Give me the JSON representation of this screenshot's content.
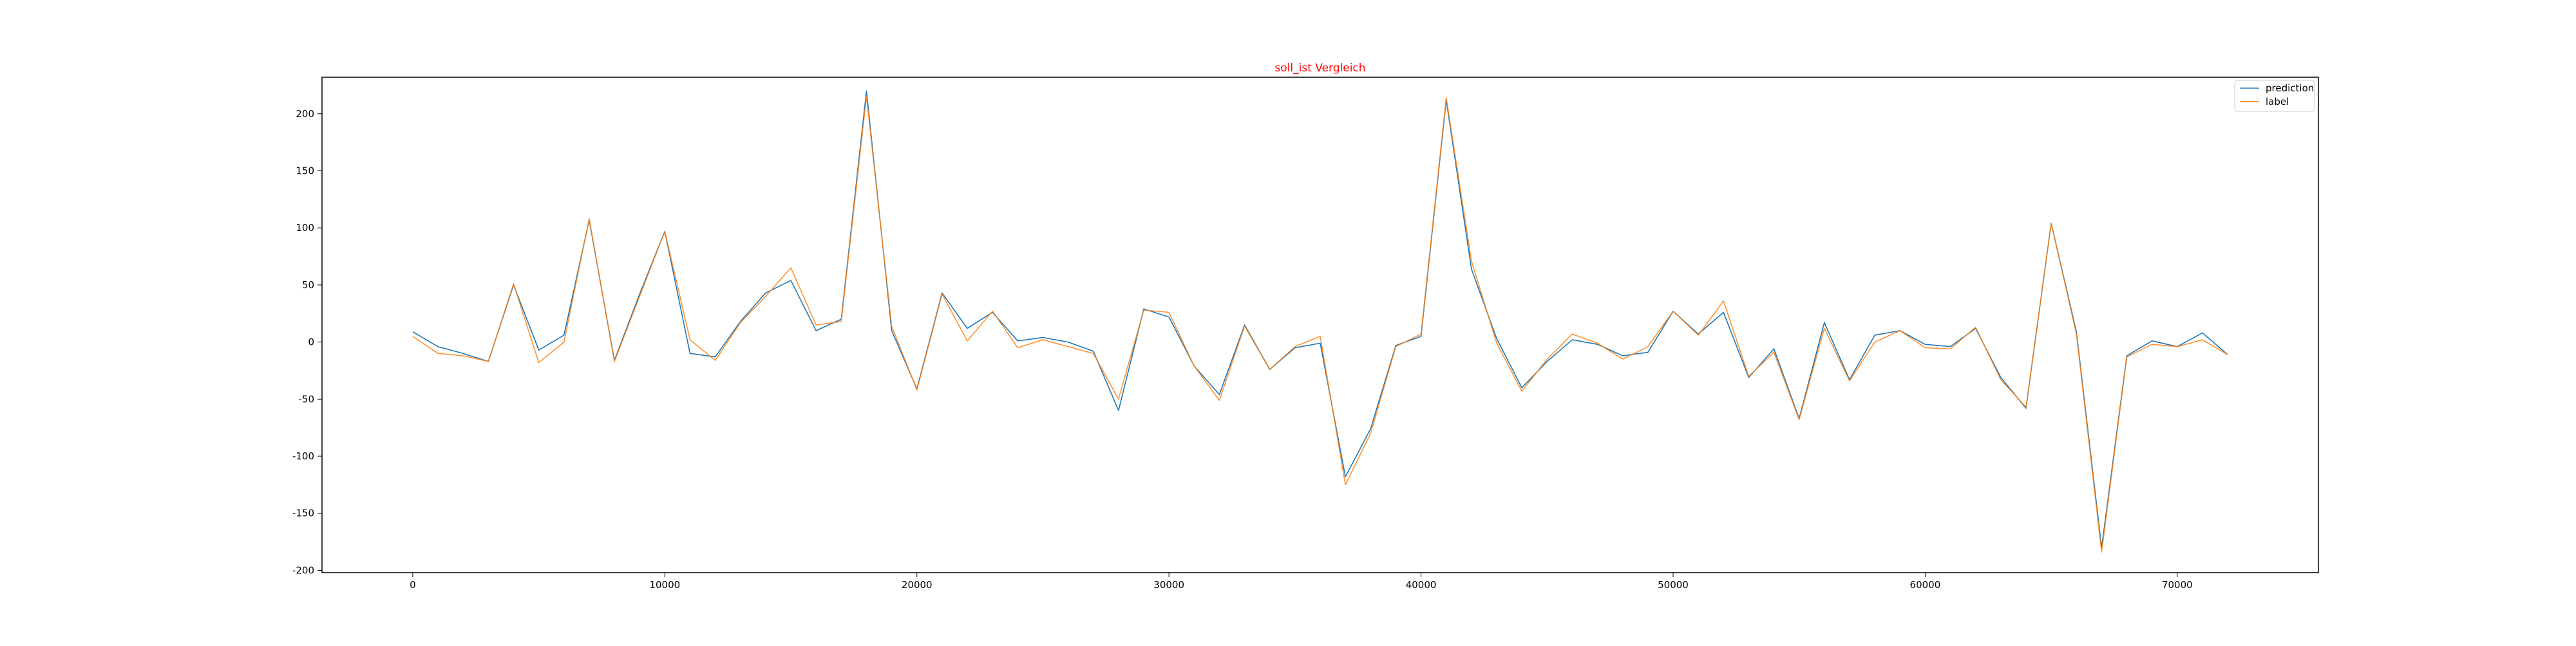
{
  "chart_data": {
    "type": "line",
    "title": "soll_ist Vergleich",
    "title_color": "#ff0000",
    "xlabel": "",
    "ylabel": "",
    "xlim": [
      -3600,
      75600
    ],
    "ylim": [
      -202,
      232
    ],
    "xticks": [
      0,
      10000,
      20000,
      30000,
      40000,
      50000,
      60000,
      70000
    ],
    "yticks": [
      -200,
      -150,
      -100,
      -50,
      0,
      50,
      100,
      150,
      200
    ],
    "grid": false,
    "legend_position": "top-right",
    "x": [
      0,
      1000,
      2000,
      3000,
      4000,
      5000,
      6000,
      7000,
      8000,
      9000,
      10000,
      11000,
      12000,
      13000,
      14000,
      15000,
      16000,
      17000,
      18000,
      19000,
      20000,
      21000,
      22000,
      23000,
      24000,
      25000,
      26000,
      27000,
      28000,
      29000,
      30000,
      31000,
      32000,
      33000,
      34000,
      35000,
      36000,
      37000,
      38000,
      39000,
      40000,
      41000,
      42000,
      43000,
      44000,
      45000,
      46000,
      47000,
      48000,
      49000,
      50000,
      51000,
      52000,
      53000,
      54000,
      55000,
      56000,
      57000,
      58000,
      59000,
      60000,
      61000,
      62000,
      63000,
      64000,
      65000,
      66000,
      67000,
      68000,
      69000,
      70000,
      71000,
      72000
    ],
    "series": [
      {
        "name": "prediction",
        "color": "#1f77b4",
        "values": [
          9,
          -4,
          -10,
          -17,
          50,
          -7,
          6,
          107,
          -16,
          42,
          97,
          -10,
          -13,
          18,
          43,
          54,
          10,
          20,
          220,
          10,
          -41,
          43,
          12,
          26,
          1,
          4,
          0,
          -8,
          -60,
          29,
          22,
          -21,
          -46,
          15,
          -24,
          -5,
          -1,
          -118,
          -76,
          -3,
          5,
          212,
          64,
          3,
          -40,
          -17,
          2,
          -2,
          -12,
          -9,
          27,
          7,
          26,
          -31,
          -6,
          -67,
          17,
          -33,
          6,
          10,
          -2,
          -4,
          12,
          -31,
          -58,
          104,
          9,
          -180,
          -12,
          1,
          -4,
          8,
          -11
        ]
      },
      {
        "name": "label",
        "color": "#ff7f0e",
        "values": [
          5,
          -10,
          -12,
          -17,
          51,
          -18,
          0,
          108,
          -17,
          40,
          97,
          2,
          -16,
          17,
          40,
          65,
          15,
          18,
          215,
          14,
          -42,
          42,
          1,
          27,
          -5,
          2,
          -4,
          -10,
          -50,
          28,
          26,
          -21,
          -51,
          14,
          -24,
          -4,
          5,
          -125,
          -80,
          -4,
          7,
          214,
          71,
          -1,
          -43,
          -15,
          7,
          -1,
          -15,
          -4,
          27,
          6,
          36,
          -30,
          -9,
          -68,
          12,
          -34,
          0,
          10,
          -5,
          -6,
          13,
          -33,
          -57,
          104,
          7,
          -184,
          -13,
          -2,
          -4,
          2,
          -11
        ]
      }
    ]
  }
}
